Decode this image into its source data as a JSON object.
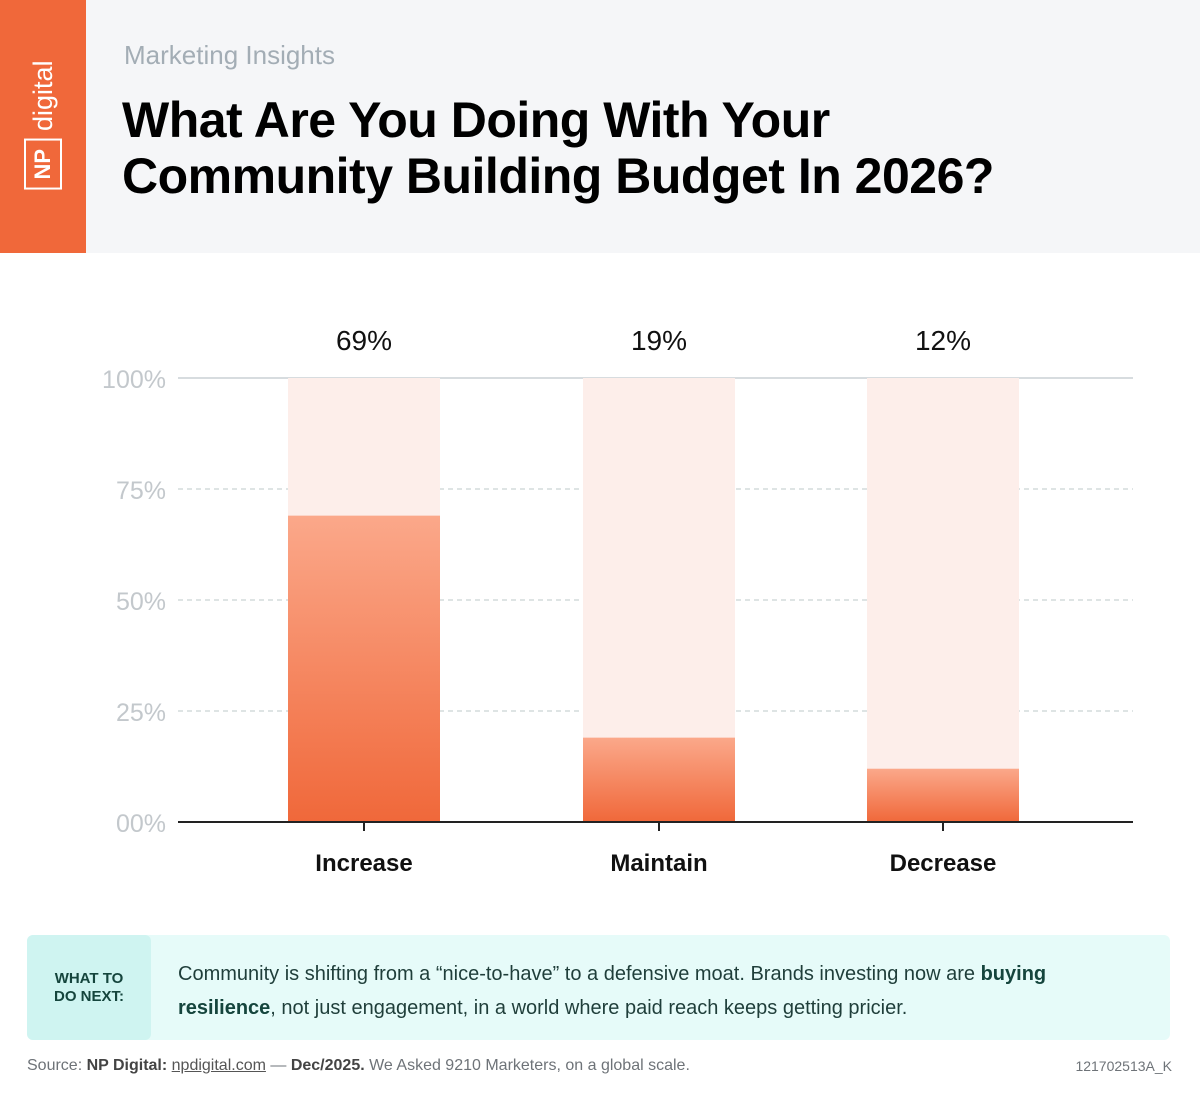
{
  "brand": {
    "logo_np": "NP",
    "logo_digital": "digital",
    "color": "#f0683a"
  },
  "header": {
    "eyebrow": "Marketing Insights",
    "title_line1": "What Are You Doing With Your",
    "title_line2": "Community Building Budget In 2026?"
  },
  "chart_data": {
    "type": "bar",
    "categories": [
      "Increase",
      "Maintain",
      "Decrease"
    ],
    "values": [
      69,
      19,
      12
    ],
    "data_labels": [
      "69%",
      "19%",
      "12%"
    ],
    "ylim": [
      0,
      100
    ],
    "yticks": [
      {
        "v": 0,
        "label": "00%"
      },
      {
        "v": 25,
        "label": "25%"
      },
      {
        "v": 50,
        "label": "50%"
      },
      {
        "v": 75,
        "label": "75%"
      },
      {
        "v": 100,
        "label": "100%"
      }
    ],
    "grid": true,
    "colors": {
      "bar_top": "#fba88a",
      "bar_bottom": "#f0683a",
      "track": "#fdeeea"
    }
  },
  "callout": {
    "tag_line1": "WHAT TO",
    "tag_line2": "DO NEXT:",
    "text_1": "Community is shifting from a “nice-to-have” to a defensive moat. Brands investing now are ",
    "bold": "buying resilience",
    "text_2": ", not just engagement, in a world where paid reach keeps getting pricier."
  },
  "footer": {
    "source": "Source: ",
    "org": "NP Digital:",
    "url": "npdigital.com",
    "dash": " — ",
    "date": "Dec/2025.",
    "rest": " We Asked 9210 Marketers, on a global scale.",
    "code": "121702513A_K"
  }
}
